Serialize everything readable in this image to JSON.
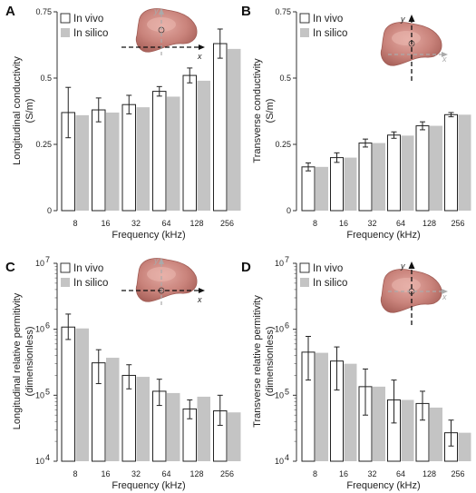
{
  "chart_data": [
    {
      "panel": "A",
      "type": "bar",
      "scale": "linear",
      "categories": [
        "8",
        "16",
        "32",
        "64",
        "128",
        "256"
      ],
      "series": [
        {
          "name": "In vivo",
          "values": [
            0.37,
            0.38,
            0.4,
            0.45,
            0.51,
            0.63
          ],
          "err": [
            0.095,
            0.045,
            0.035,
            0.018,
            0.028,
            0.055
          ],
          "color": "#ffffff"
        },
        {
          "name": "In silico",
          "values": [
            0.36,
            0.37,
            0.39,
            0.43,
            0.49,
            0.61
          ],
          "color": "#c4c4c4"
        }
      ],
      "xlabel": "Frequency (kHz)",
      "ylabel": [
        "Longitudinal conductivity",
        "(S/m)"
      ],
      "ylim": [
        0,
        0.75
      ],
      "yticks": [
        0,
        0.25,
        0.5,
        0.75
      ],
      "ytick_labels": [
        "0",
        "0.25",
        "0.5",
        "0.75"
      ],
      "legend_position": "top-left",
      "inset_axes": {
        "horizontal": "x",
        "vertical": "y",
        "highlight": "horizontal"
      }
    },
    {
      "panel": "B",
      "type": "bar",
      "scale": "linear",
      "categories": [
        "8",
        "16",
        "32",
        "64",
        "128",
        "256"
      ],
      "series": [
        {
          "name": "In vivo",
          "values": [
            0.165,
            0.2,
            0.255,
            0.285,
            0.32,
            0.362
          ],
          "err": [
            0.015,
            0.018,
            0.015,
            0.012,
            0.015,
            0.008
          ],
          "color": "#ffffff"
        },
        {
          "name": "In silico",
          "values": [
            0.165,
            0.2,
            0.255,
            0.283,
            0.32,
            0.362
          ],
          "color": "#c4c4c4"
        }
      ],
      "xlabel": "Frequency (kHz)",
      "ylabel": [
        "Transverse conductivity",
        "(S/m)"
      ],
      "ylim": [
        0,
        0.75
      ],
      "yticks": [
        0,
        0.25,
        0.5,
        0.75
      ],
      "ytick_labels": [
        "0",
        "0.25",
        "0.5",
        "0.75"
      ],
      "legend_position": "top-left",
      "inset_axes": {
        "horizontal": "x",
        "vertical": "y",
        "highlight": "vertical"
      }
    },
    {
      "panel": "C",
      "type": "bar",
      "scale": "log",
      "categories": [
        "8",
        "16",
        "32",
        "64",
        "128",
        "256"
      ],
      "series": [
        {
          "name": "In vivo",
          "values": [
            1080000,
            310000,
            200000,
            115000,
            62000,
            58000
          ],
          "err_low": [
            700000,
            150000,
            125000,
            70000,
            44000,
            35000
          ],
          "err_high": [
            1700000,
            490000,
            290000,
            175000,
            85000,
            100000
          ],
          "color": "#ffffff"
        },
        {
          "name": "In silico",
          "values": [
            1030000,
            370000,
            190000,
            108000,
            95000,
            55000
          ],
          "color": "#c4c4c4"
        }
      ],
      "xlabel": "Frequency (kHz)",
      "ylabel": [
        "Longitudinal relative permitivity",
        "(dimensionless)"
      ],
      "ylim": [
        10000,
        10000000
      ],
      "yticks": [
        10000,
        100000,
        1000000,
        10000000
      ],
      "ytick_labels": [
        "10",
        "10",
        "10",
        "10"
      ],
      "ytick_exponents": [
        "4",
        "5",
        "6",
        "7"
      ],
      "legend_position": "top-left",
      "inset_axes": {
        "horizontal": "x",
        "vertical": "y",
        "highlight": "horizontal"
      }
    },
    {
      "panel": "D",
      "type": "bar",
      "scale": "log",
      "categories": [
        "8",
        "16",
        "32",
        "64",
        "128",
        "256"
      ],
      "series": [
        {
          "name": "In vivo",
          "values": [
            450000,
            330000,
            135000,
            85000,
            75000,
            27000
          ],
          "err_low": [
            170000,
            120000,
            50000,
            38000,
            42000,
            17000
          ],
          "err_high": [
            780000,
            540000,
            250000,
            170000,
            115000,
            42000
          ],
          "color": "#ffffff"
        },
        {
          "name": "In silico",
          "values": [
            440000,
            300000,
            135000,
            85000,
            65000,
            27000
          ],
          "color": "#c4c4c4"
        }
      ],
      "xlabel": "Frequency (kHz)",
      "ylabel": [
        "Transverse relative permitivity",
        "(dimensionless)"
      ],
      "ylim": [
        10000,
        10000000
      ],
      "yticks": [
        10000,
        100000,
        1000000,
        10000000
      ],
      "ytick_labels": [
        "10",
        "10",
        "10",
        "10"
      ],
      "ytick_exponents": [
        "4",
        "5",
        "6",
        "7"
      ],
      "legend_position": "top-left",
      "inset_axes": {
        "horizontal": "x",
        "vertical": "y",
        "highlight": "vertical"
      }
    }
  ]
}
